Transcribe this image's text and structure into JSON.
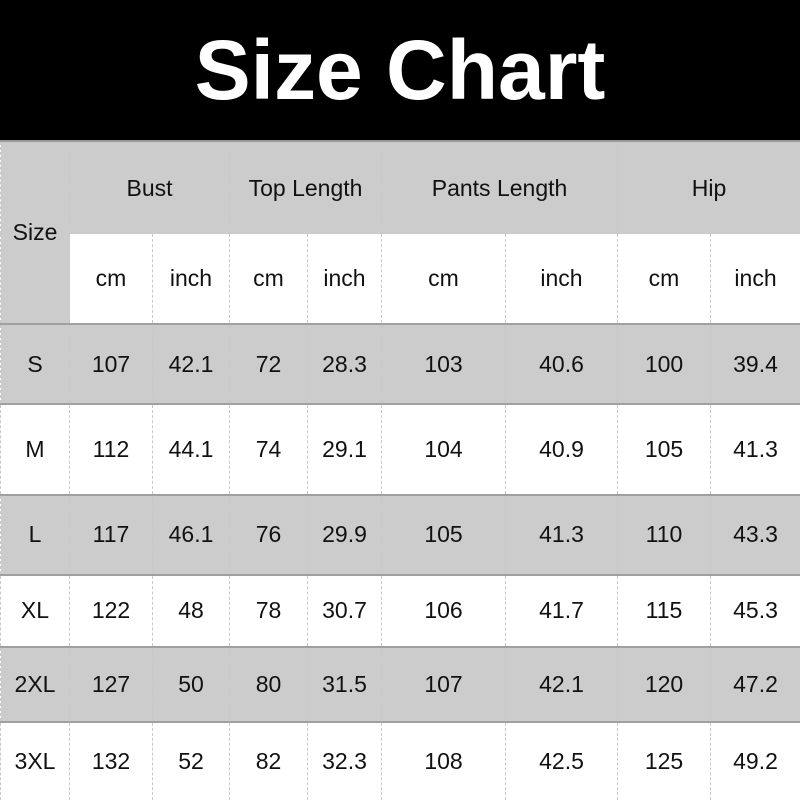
{
  "title": "Size Chart",
  "header": {
    "size": "Size",
    "groups": [
      "Bust",
      "Top Length",
      "Pants Length",
      "Hip"
    ],
    "units": [
      "cm",
      "inch",
      "cm",
      "inch",
      "cm",
      "inch",
      "cm",
      "inch"
    ]
  },
  "rows": [
    [
      "S",
      "107",
      "42.1",
      "72",
      "28.3",
      "103",
      "40.6",
      "100",
      "39.4"
    ],
    [
      "M",
      "112",
      "44.1",
      "74",
      "29.1",
      "104",
      "40.9",
      "105",
      "41.3"
    ],
    [
      "L",
      "117",
      "46.1",
      "76",
      "29.9",
      "105",
      "41.3",
      "110",
      "43.3"
    ],
    [
      "XL",
      "122",
      "48",
      "78",
      "30.7",
      "106",
      "41.7",
      "115",
      "45.3"
    ],
    [
      "2XL",
      "127",
      "50",
      "80",
      "31.5",
      "107",
      "42.1",
      "120",
      "47.2"
    ],
    [
      "3XL",
      "132",
      "52",
      "82",
      "32.3",
      "108",
      "42.5",
      "125",
      "49.2"
    ]
  ],
  "colors": {
    "title_bg": "#000000",
    "shaded_row": "#cccccc"
  }
}
